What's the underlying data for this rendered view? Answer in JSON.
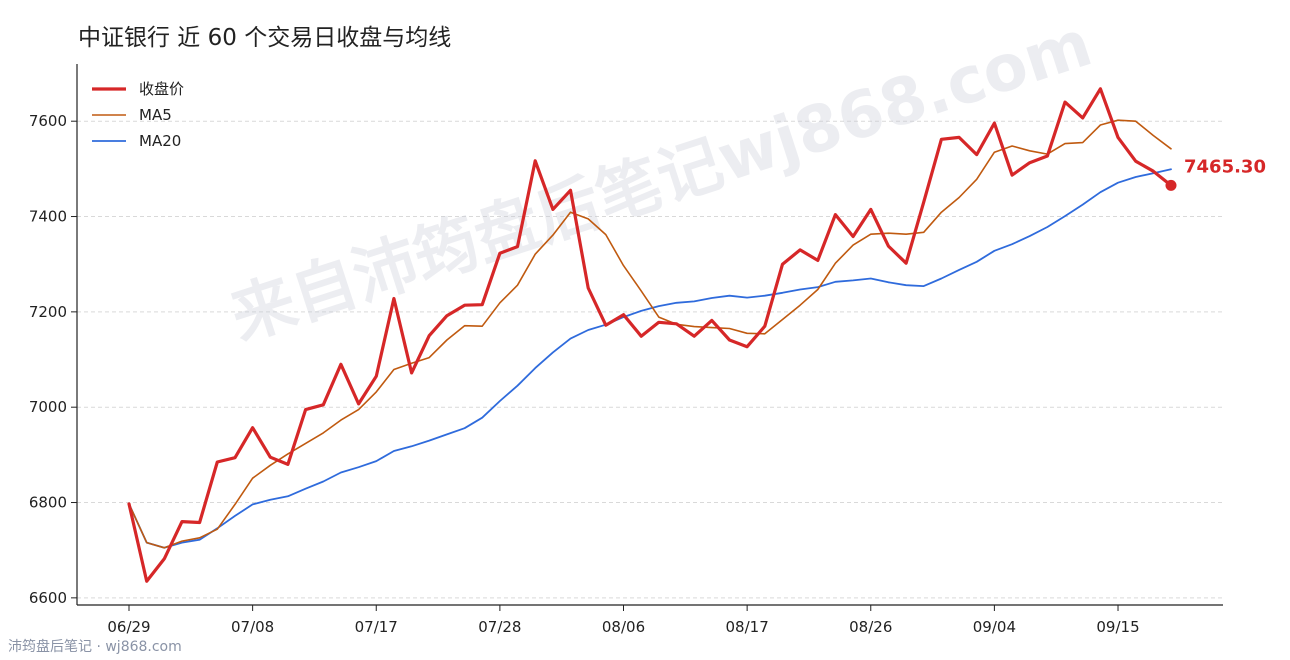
{
  "title": "中证银行 近 60 个交易日收盘与均线",
  "watermark": "来自沛筠盘后笔记wj868.com",
  "source": "沛筠盘后笔记 · wj868.com",
  "chart_data": {
    "type": "line",
    "x_tick_labels": [
      "06/29",
      "07/08",
      "07/17",
      "07/28",
      "08/06",
      "08/17",
      "08/26",
      "09/04",
      "09/15"
    ],
    "x_tick_index": [
      0,
      7,
      14,
      21,
      28,
      35,
      42,
      49,
      56
    ],
    "y_ticks": [
      6600,
      6800,
      7000,
      7200,
      7400,
      7600
    ],
    "ylim": [
      6585,
      7720
    ],
    "grid": true,
    "legend_position": "top-left",
    "last_value_label": "7465.30",
    "series": [
      {
        "name": "收盘价",
        "color": "#d62728",
        "values": [
          6797,
          6635,
          6682,
          6760,
          6758,
          6885,
          6894,
          6957,
          6895,
          6880,
          6995,
          7005,
          7090,
          7007,
          7065,
          7228,
          7072,
          7150,
          7192,
          7214,
          7215,
          7323,
          7337,
          7517,
          7415,
          7455,
          7250,
          7172,
          7194,
          7149,
          7178,
          7175,
          7149,
          7182,
          7141,
          7127,
          7170,
          7300,
          7330,
          7308,
          7404,
          7358,
          7415,
          7338,
          7302,
          7430,
          7562,
          7566,
          7530,
          7596,
          7487,
          7513,
          7527,
          7640,
          7607,
          7668,
          7566,
          7516,
          7495,
          7465.3
        ]
      },
      {
        "name": "MA5",
        "color": "#c05a10",
        "values": [
          6797,
          6716,
          6705,
          6719,
          6726,
          6744,
          6796,
          6851,
          6878,
          6902,
          6924,
          6946,
          6973,
          6995,
          7032,
          7079,
          7092,
          7104,
          7141,
          7171,
          7170,
          7219,
          7256,
          7321,
          7361,
          7409,
          7395,
          7362,
          7297,
          7244,
          7189,
          7174,
          7169,
          7167,
          7165,
          7155,
          7154,
          7184,
          7214,
          7247,
          7302,
          7340,
          7363,
          7365,
          7363,
          7367,
          7409,
          7440,
          7478,
          7535,
          7548,
          7538,
          7531,
          7553,
          7555,
          7592,
          7602,
          7600,
          7570,
          7542
        ]
      },
      {
        "name": "MA20",
        "color": "#2f6bdc",
        "values": [
          6797,
          6716,
          6705,
          6716,
          6722,
          6746,
          6772,
          6796,
          6806,
          6813,
          6829,
          6844,
          6863,
          6874,
          6887,
          6908,
          6918,
          6930,
          6943,
          6956,
          6978,
          7013,
          7045,
          7082,
          7115,
          7144,
          7162,
          7173,
          7189,
          7202,
          7212,
          7219,
          7222,
          7229,
          7234,
          7230,
          7234,
          7240,
          7247,
          7252,
          7263,
          7266,
          7270,
          7262,
          7256,
          7254,
          7270,
          7288,
          7305,
          7328,
          7342,
          7359,
          7378,
          7401,
          7425,
          7451,
          7471,
          7483,
          7491,
          7499
        ]
      }
    ]
  }
}
